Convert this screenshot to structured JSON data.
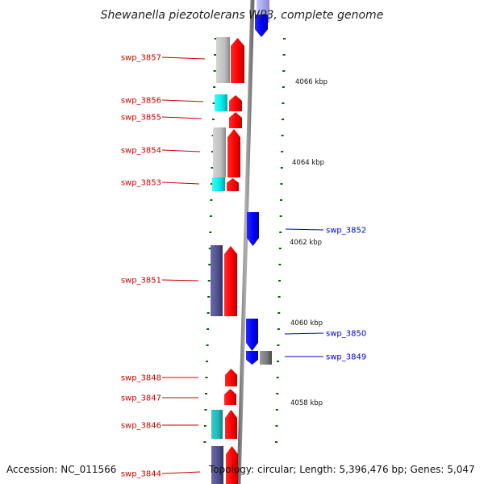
{
  "title": "Shewanella piezotolerans WP3, complete genome",
  "footer": {
    "accession": "Accession: NC_011566",
    "stats": "Topology: circular; Length: 5,396,476 bp; Genes: 5,047"
  },
  "kbp_labels": [
    "4066 kbp",
    "4064 kbp",
    "4062 kbp",
    "4060 kbp",
    "4058 kbp"
  ],
  "colors": {
    "reverse_label": "#cc0000",
    "forward_label": "#0000cc",
    "tick": "#006600",
    "backbone": "#888888"
  },
  "genes": [
    {
      "id": "swp_3857",
      "strand": "reverse"
    },
    {
      "id": "swp_3856",
      "strand": "reverse"
    },
    {
      "id": "swp_3855",
      "strand": "reverse"
    },
    {
      "id": "swp_3854",
      "strand": "reverse"
    },
    {
      "id": "swp_3853",
      "strand": "reverse"
    },
    {
      "id": "swp_3852",
      "strand": "forward"
    },
    {
      "id": "swp_3851",
      "strand": "reverse"
    },
    {
      "id": "swp_3850",
      "strand": "forward"
    },
    {
      "id": "swp_3849",
      "strand": "forward"
    },
    {
      "id": "swp_3848",
      "strand": "reverse"
    },
    {
      "id": "swp_3847",
      "strand": "reverse"
    },
    {
      "id": "swp_3846",
      "strand": "reverse"
    },
    {
      "id": "swp_3844",
      "strand": "reverse"
    }
  ]
}
